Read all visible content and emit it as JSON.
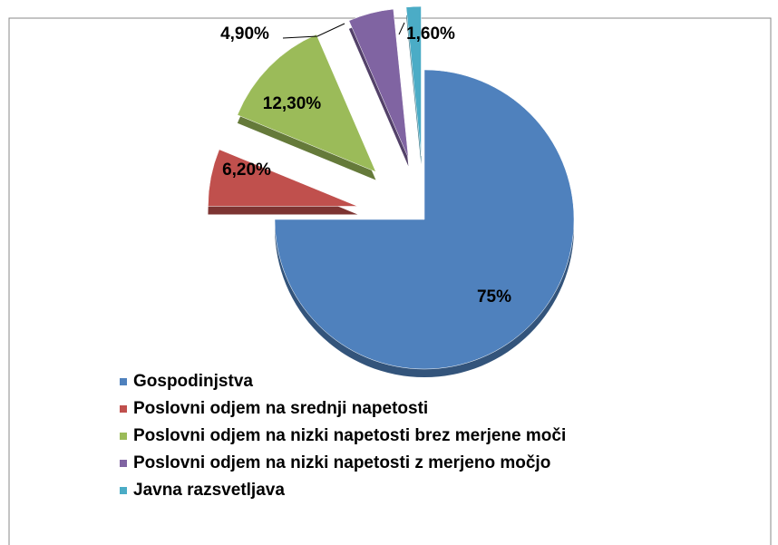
{
  "chart_data": {
    "type": "pie",
    "categories": [
      "Gospodinjstva",
      "Poslovni odjem na srednji napetosti",
      "Poslovni odjem na nizki napetosti brez merjene moči",
      "Poslovni odjem na nizki napetosti z merjeno močjo",
      "Javna razsvetljava"
    ],
    "values": [
      75,
      6.2,
      12.3,
      4.9,
      1.6
    ],
    "value_labels": [
      "75%",
      "6,20%",
      "12,30%",
      "4,90%",
      "1,60%"
    ],
    "colors": [
      "#4f81bd",
      "#c0504d",
      "#9bbb59",
      "#8064a2",
      "#4bacc6"
    ],
    "legend": "bottom-left"
  }
}
